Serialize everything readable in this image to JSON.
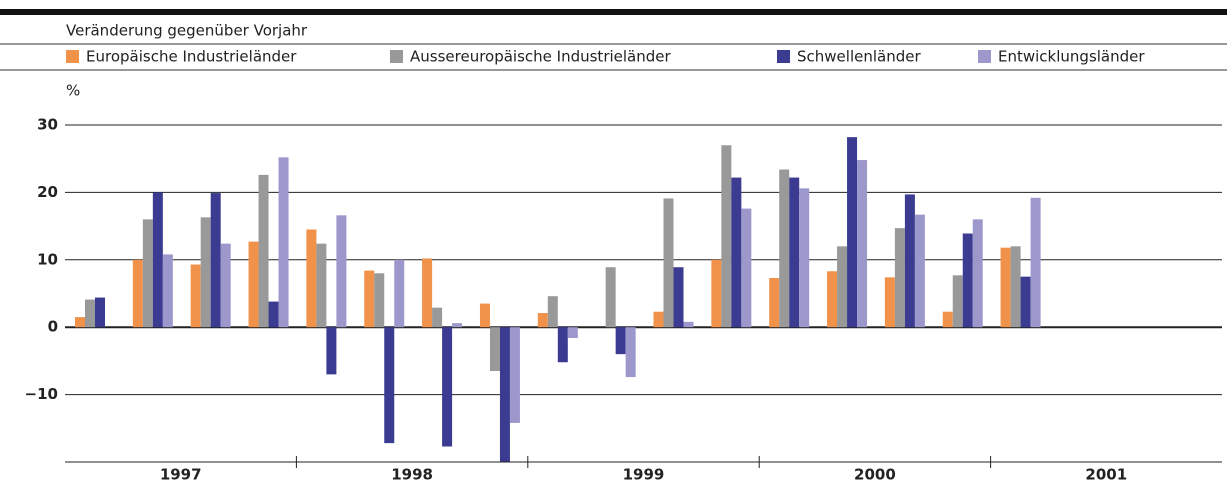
{
  "chart_data": {
    "type": "bar",
    "subtitle": "Veränderung gegenüber Vorjahr",
    "y_label": "%",
    "categories": [
      null,
      null,
      null,
      null,
      null,
      null,
      null,
      null,
      null,
      null,
      null,
      null,
      null,
      null,
      null,
      null,
      null,
      null,
      null,
      null
    ],
    "years": [
      "1997",
      "1998",
      "1999",
      "2000",
      "2001"
    ],
    "series": [
      {
        "name": "Europäische Industrieländer",
        "color": "#f0924a",
        "values": [
          1.5,
          10,
          9.3,
          12.7,
          14.5,
          8.4,
          10.2,
          3.5,
          2.1,
          0,
          2.3,
          10,
          7.3,
          8.3,
          7.4,
          2.3,
          11.8,
          null,
          null,
          null
        ]
      },
      {
        "name": "Aussereuropäische Industrieländer",
        "color": "#999999",
        "values": [
          4.1,
          16,
          16.3,
          22.6,
          12.4,
          8,
          2.9,
          -6.5,
          4.6,
          8.9,
          19.1,
          27,
          23.4,
          12,
          14.7,
          7.7,
          12,
          null,
          null,
          null
        ]
      },
      {
        "name": "Schwellenländer",
        "color": "#3b3b91",
        "values": [
          4.4,
          20,
          19.9,
          3.8,
          -7,
          -17.2,
          -17.7,
          -20,
          -5.2,
          -4,
          8.9,
          22.2,
          22.2,
          28.2,
          19.7,
          13.9,
          7.5,
          null,
          null,
          null
        ]
      },
      {
        "name": "Entwicklungsländer",
        "color": "#9d98cc",
        "values": [
          null,
          10.8,
          12.4,
          25.2,
          16.6,
          10,
          0.6,
          -14.2,
          -1.6,
          -7.4,
          0.8,
          17.6,
          20.6,
          24.8,
          16.7,
          16,
          19.2,
          null,
          null,
          null
        ]
      }
    ],
    "ylim": [
      -20,
      30
    ],
    "yticks": [
      {
        "value": -10,
        "label": "−10"
      },
      0,
      10,
      20,
      30
    ],
    "grid": true
  }
}
